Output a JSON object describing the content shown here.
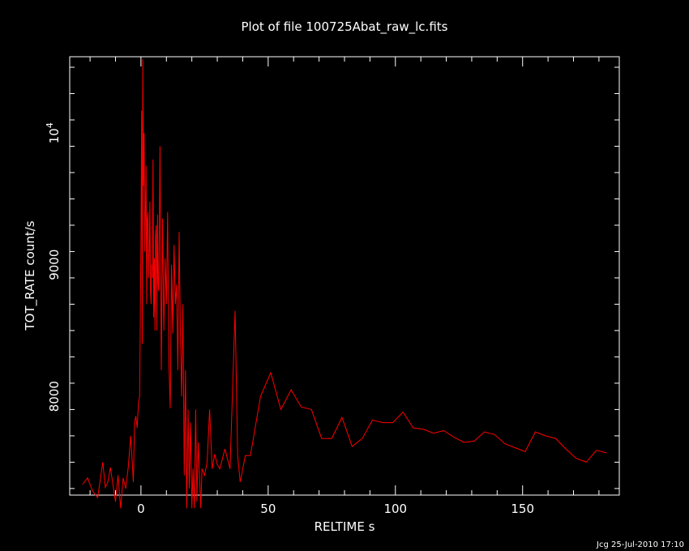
{
  "chart_data": {
    "type": "line",
    "title": "Plot of file 100725Abat_raw_lc.fits",
    "xlabel": "RELTIME   s",
    "ylabel": "TOT_RATE   count/s",
    "xlim": [
      -28,
      188
    ],
    "ylim": [
      7250,
      10580
    ],
    "x_ticks": [
      0,
      50,
      100,
      150
    ],
    "y_ticks": [
      {
        "value": 8000,
        "label": "8000"
      },
      {
        "value": 9000,
        "label": "9000"
      },
      {
        "value": 10000,
        "label": "10",
        "sup": "4"
      }
    ],
    "series": [
      {
        "color": "#ff0000",
        "x": [
          -23,
          -21,
          -19,
          -17,
          -15,
          -14,
          -13,
          -12,
          -10,
          -9,
          -8,
          -7,
          -6,
          -5,
          -4,
          -3,
          -2.5,
          -2,
          -1.5,
          -1,
          -0.5,
          0,
          0.25,
          0.5,
          0.75,
          1,
          1.25,
          1.5,
          1.75,
          2,
          2.25,
          2.5,
          2.75,
          3,
          3.25,
          3.5,
          3.75,
          4,
          4.25,
          4.5,
          4.75,
          5,
          5.25,
          5.5,
          5.75,
          6,
          6.25,
          6.5,
          6.75,
          7,
          7.5,
          8,
          8.5,
          9,
          9.5,
          10,
          10.5,
          11,
          11.5,
          12,
          12.5,
          13,
          13.5,
          14,
          14.5,
          15,
          15.5,
          16,
          16.5,
          17,
          17.5,
          18,
          18.5,
          19,
          19.5,
          20,
          20.5,
          21,
          21.5,
          22,
          22.5,
          23,
          23.5,
          24,
          25,
          26,
          27,
          28,
          29,
          30,
          31,
          33,
          35,
          37,
          38,
          39,
          41,
          43,
          47,
          51,
          55,
          59,
          63,
          67,
          71,
          75,
          79,
          83,
          87,
          91,
          95,
          99,
          103,
          107,
          111,
          115,
          119,
          123,
          127,
          131,
          135,
          139,
          143,
          147,
          151,
          155,
          159,
          163,
          167,
          171,
          175,
          179,
          183
        ],
        "y": [
          7330,
          7380,
          7280,
          7230,
          7500,
          7310,
          7350,
          7460,
          7200,
          7400,
          7150,
          7380,
          7300,
          7460,
          7700,
          7350,
          7800,
          7850,
          7760,
          7950,
          8000,
          9200,
          10170,
          8400,
          10560,
          9600,
          10000,
          9100,
          9400,
          9750,
          8700,
          9350,
          9400,
          8900,
          9080,
          9480,
          8800,
          8700,
          9000,
          8900,
          9800,
          8600,
          9050,
          8500,
          9220,
          9300,
          8500,
          9380,
          8850,
          8800,
          9900,
          8200,
          9350,
          8500,
          9050,
          8700,
          9400,
          8250,
          7910,
          9000,
          8480,
          9150,
          8700,
          8850,
          8200,
          9250,
          8500,
          8000,
          8700,
          7400,
          8200,
          7150,
          7900,
          7300,
          7800,
          7150,
          7450,
          7150,
          7900,
          7200,
          7650,
          7400,
          7150,
          7450,
          7400,
          7500,
          7900,
          7450,
          7560,
          7480,
          7450,
          7600,
          7450,
          8650,
          7550,
          7350,
          7550,
          7550,
          8000,
          8180,
          7900,
          8050,
          7920,
          7900,
          7680,
          7680,
          7840,
          7620,
          7680,
          7820,
          7800,
          7800,
          7880,
          7760,
          7750,
          7720,
          7740,
          7690,
          7650,
          7660,
          7730,
          7710,
          7640,
          7610,
          7580,
          7730,
          7700,
          7680,
          7600,
          7530,
          7500,
          7590,
          7570
        ]
      }
    ],
    "axis_color": "#ffffff",
    "background": "#000000",
    "grid": false
  },
  "footer": "Jcg 25-Jul-2010 17:10"
}
